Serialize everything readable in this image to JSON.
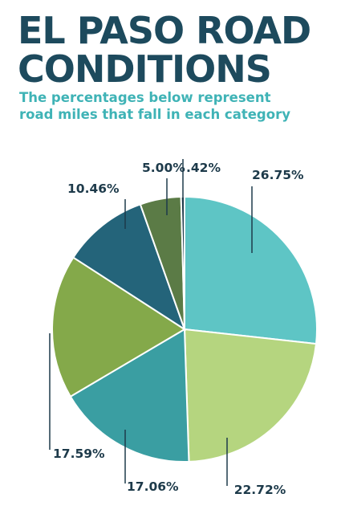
{
  "header": {
    "title_line1": "EL PASO ROAD",
    "title_line2": "CONDITIONS",
    "subtitle_line1": "The percentages below represent",
    "subtitle_line2": "road miles that fall in each category"
  },
  "chart_data": {
    "type": "pie",
    "title": "EL PASO ROAD CONDITIONS",
    "subtitle": "The percentages below represent road miles that fall in each category",
    "slices": [
      {
        "label": "26.75%",
        "value": 26.75,
        "color": "#5ec5c5"
      },
      {
        "label": "22.72%",
        "value": 22.72,
        "color": "#b5d57f"
      },
      {
        "label": "17.06%",
        "value": 17.06,
        "color": "#3a9ea2"
      },
      {
        "label": "17.59%",
        "value": 17.59,
        "color": "#84a94a"
      },
      {
        "label": "10.46%",
        "value": 10.46,
        "color": "#24647a"
      },
      {
        "label": "5.00%",
        "value": 5.0,
        "color": "#5b7b46"
      },
      {
        "label": ".42%",
        "value": 0.42,
        "color": "#1f3b4b"
      }
    ]
  }
}
